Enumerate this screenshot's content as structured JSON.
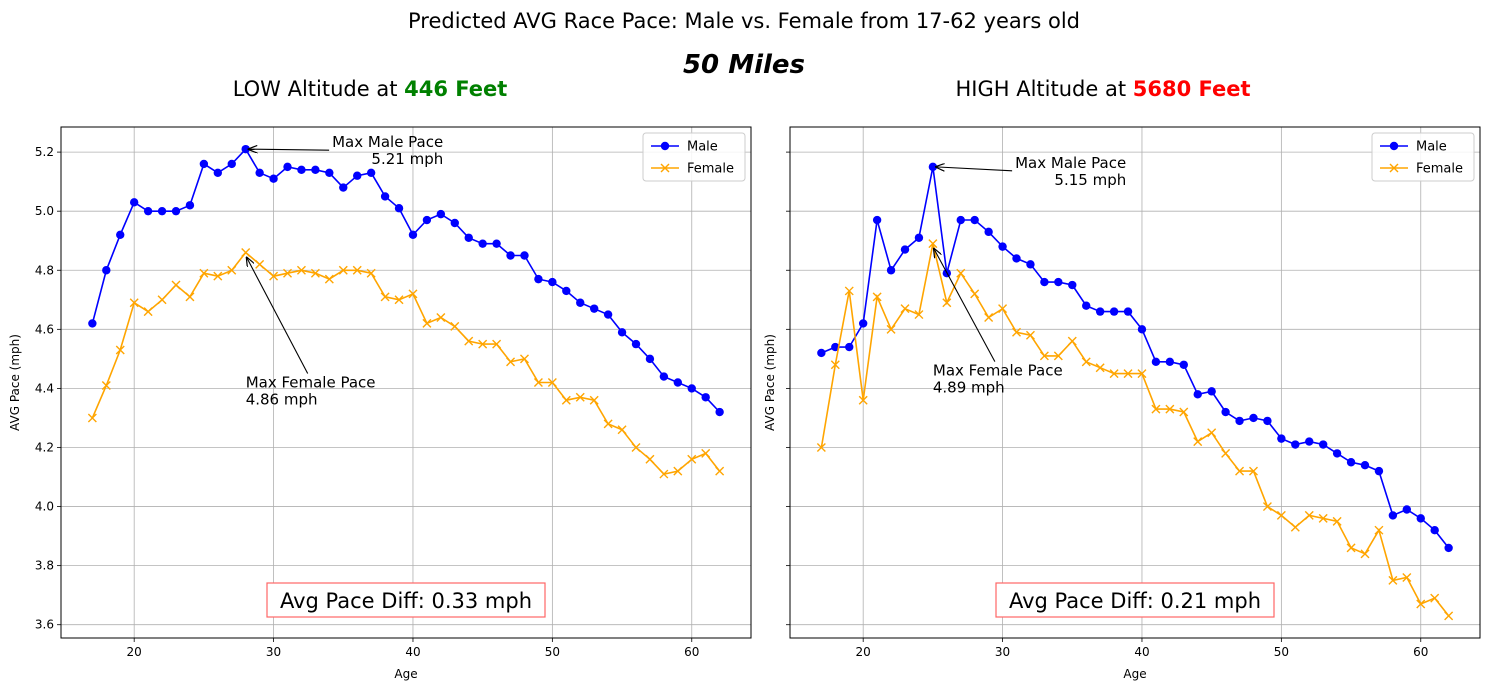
{
  "figure": {
    "suptitle": "Predicted AVG Race Pace: Male vs. Female from 17-62 years old",
    "subtitle": "50 Miles"
  },
  "chart_data": [
    {
      "type": "line",
      "title_prefix": "LOW Altitude at ",
      "title_highlight": "446 Feet",
      "title_highlight_color": "#008000",
      "xlabel": "Age",
      "ylabel": "AVG Pace (mph)",
      "xlim": [
        14.75,
        64.25
      ],
      "ylim": [
        3.555,
        5.285
      ],
      "xticks": [
        20,
        30,
        40,
        50,
        60
      ],
      "yticks": [
        3.6,
        3.8,
        4.0,
        4.2,
        4.4,
        4.6,
        4.8,
        5.0,
        5.2
      ],
      "grid": true,
      "legend": "top-right",
      "x": [
        17,
        18,
        19,
        20,
        21,
        22,
        23,
        24,
        25,
        26,
        27,
        28,
        29,
        30,
        31,
        32,
        33,
        34,
        35,
        36,
        37,
        38,
        39,
        40,
        41,
        42,
        43,
        44,
        45,
        46,
        47,
        48,
        49,
        50,
        51,
        52,
        53,
        54,
        55,
        56,
        57,
        58,
        59,
        60,
        61,
        62
      ],
      "series": [
        {
          "name": "Male",
          "color": "#0000ff",
          "marker": "circle",
          "values": [
            4.62,
            4.8,
            4.92,
            5.03,
            5.0,
            5.0,
            5.0,
            5.02,
            5.16,
            5.13,
            5.16,
            5.21,
            5.13,
            5.11,
            5.15,
            5.14,
            5.14,
            5.13,
            5.08,
            5.12,
            5.13,
            5.05,
            5.01,
            4.92,
            4.97,
            4.99,
            4.96,
            4.91,
            4.89,
            4.89,
            4.85,
            4.85,
            4.77,
            4.76,
            4.73,
            4.69,
            4.67,
            4.65,
            4.59,
            4.55,
            4.5,
            4.44,
            4.42,
            4.4,
            4.37,
            4.32
          ]
        },
        {
          "name": "Female",
          "color": "#ffa500",
          "marker": "x",
          "values": [
            4.3,
            4.41,
            4.53,
            4.69,
            4.66,
            4.7,
            4.75,
            4.71,
            4.79,
            4.78,
            4.8,
            4.86,
            4.82,
            4.78,
            4.79,
            4.8,
            4.79,
            4.77,
            4.8,
            4.8,
            4.79,
            4.71,
            4.7,
            4.72,
            4.62,
            4.64,
            4.61,
            4.56,
            4.55,
            4.55,
            4.49,
            4.5,
            4.42,
            4.42,
            4.36,
            4.37,
            4.36,
            4.28,
            4.26,
            4.2,
            4.16,
            4.11,
            4.12,
            4.16,
            4.18,
            4.12
          ]
        }
      ],
      "annotations": [
        {
          "label_line1": "Max Male Pace",
          "label_line2": "5.21 mph",
          "align": "right",
          "point": [
            28,
            5.21
          ],
          "text_at": [
            34.2,
            5.21
          ]
        },
        {
          "label_line1": "Max Female Pace",
          "label_line2": "4.86 mph",
          "align": "left",
          "point": [
            28,
            4.86
          ],
          "text_at": [
            28,
            4.41
          ]
        }
      ],
      "diff_box": "Avg Pace Diff: 0.33 mph"
    },
    {
      "type": "line",
      "title_prefix": "HIGH Altitude at ",
      "title_highlight": "5680 Feet",
      "title_highlight_color": "#ff0000",
      "xlabel": "Age",
      "ylabel": "AVG Pace (mph)",
      "xlim": [
        14.75,
        64.25
      ],
      "ylim": [
        3.555,
        5.285
      ],
      "xticks": [
        20,
        30,
        40,
        50,
        60
      ],
      "yticks": [
        3.6,
        3.8,
        4.0,
        4.2,
        4.4,
        4.6,
        4.8,
        5.0,
        5.2
      ],
      "grid": true,
      "legend": "top-right",
      "x": [
        17,
        18,
        19,
        20,
        21,
        22,
        23,
        24,
        25,
        26,
        27,
        28,
        29,
        30,
        31,
        32,
        33,
        34,
        35,
        36,
        37,
        38,
        39,
        40,
        41,
        42,
        43,
        44,
        45,
        46,
        47,
        48,
        49,
        50,
        51,
        52,
        53,
        54,
        55,
        56,
        57,
        58,
        59,
        60,
        61,
        62
      ],
      "series": [
        {
          "name": "Male",
          "color": "#0000ff",
          "marker": "circle",
          "values": [
            4.52,
            4.54,
            4.54,
            4.62,
            4.97,
            4.8,
            4.87,
            4.91,
            5.15,
            4.79,
            4.97,
            4.97,
            4.93,
            4.88,
            4.84,
            4.82,
            4.76,
            4.76,
            4.75,
            4.68,
            4.66,
            4.66,
            4.66,
            4.6,
            4.49,
            4.49,
            4.48,
            4.38,
            4.39,
            4.32,
            4.29,
            4.3,
            4.29,
            4.23,
            4.21,
            4.22,
            4.21,
            4.18,
            4.15,
            4.14,
            4.12,
            3.97,
            3.99,
            3.96,
            3.92,
            3.86
          ]
        },
        {
          "name": "Female",
          "color": "#ffa500",
          "marker": "x",
          "values": [
            4.2,
            4.48,
            4.73,
            4.36,
            4.71,
            4.6,
            4.67,
            4.65,
            4.89,
            4.69,
            4.79,
            4.72,
            4.64,
            4.67,
            4.59,
            4.58,
            4.51,
            4.51,
            4.56,
            4.49,
            4.47,
            4.45,
            4.45,
            4.45,
            4.33,
            4.33,
            4.32,
            4.22,
            4.25,
            4.18,
            4.12,
            4.12,
            4.0,
            3.97,
            3.93,
            3.97,
            3.96,
            3.95,
            3.86,
            3.84,
            3.92,
            3.75,
            3.76,
            3.67,
            3.69,
            3.63
          ]
        }
      ],
      "annotations": [
        {
          "label_line1": "Max Male Pace",
          "label_line2": "5.15 mph",
          "align": "right",
          "point": [
            25,
            5.15
          ],
          "text_at": [
            30.9,
            5.14
          ]
        },
        {
          "label_line1": "Max Female Pace",
          "label_line2": "4.89 mph",
          "align": "left",
          "point": [
            25,
            4.89
          ],
          "text_at": [
            25,
            4.45
          ]
        }
      ],
      "diff_box": "Avg Pace Diff: 0.21 mph"
    }
  ]
}
